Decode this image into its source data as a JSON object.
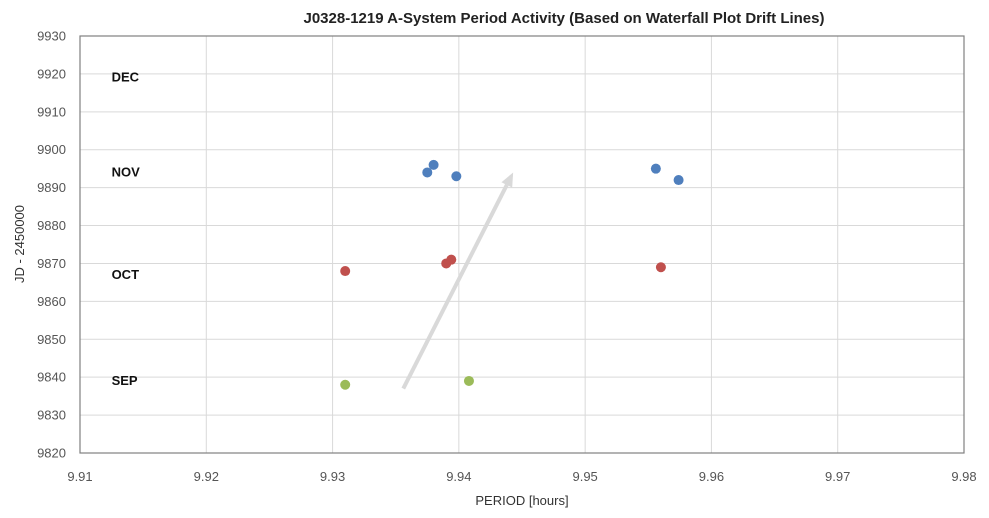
{
  "chart_data": {
    "type": "scatter",
    "title": "J0328-1219 A-System Period Activity (Based on Waterfall Plot Drift Lines)",
    "xlabel": "PERIOD [hours]",
    "ylabel": "JD - 2450000",
    "xlim": [
      9.91,
      9.98
    ],
    "ylim": [
      9820,
      9930
    ],
    "x_ticks": [
      "9.91",
      "9.92",
      "9.93",
      "9.94",
      "9.95",
      "9.96",
      "9.97",
      "9.98"
    ],
    "y_ticks": [
      "9820",
      "9830",
      "9840",
      "9850",
      "9860",
      "9870",
      "9880",
      "9890",
      "9900",
      "9910",
      "9920",
      "9930"
    ],
    "grid": true,
    "legend": "none",
    "series": [
      {
        "color": "#4f7fbd",
        "points": [
          [
            9.9375,
            9894
          ],
          [
            9.938,
            9896
          ],
          [
            9.9398,
            9893
          ],
          [
            9.9556,
            9895
          ],
          [
            9.9574,
            9892
          ]
        ]
      },
      {
        "color": "#c0504d",
        "points": [
          [
            9.931,
            9868
          ],
          [
            9.939,
            9870
          ],
          [
            9.9394,
            9871
          ],
          [
            9.956,
            9869
          ]
        ]
      },
      {
        "color": "#9bbb59",
        "points": [
          [
            9.931,
            9838
          ],
          [
            9.9408,
            9839
          ]
        ]
      }
    ],
    "annotations": [
      {
        "text": "DEC",
        "x": 9.9125,
        "y": 9919
      },
      {
        "text": "NOV",
        "x": 9.9125,
        "y": 9894
      },
      {
        "text": "OCT",
        "x": 9.9125,
        "y": 9867
      },
      {
        "text": "SEP",
        "x": 9.9125,
        "y": 9839
      }
    ],
    "arrow": {
      "from": [
        9.9356,
        9837
      ],
      "to": [
        9.9443,
        9894
      ],
      "color": "#d9d9d9"
    }
  }
}
